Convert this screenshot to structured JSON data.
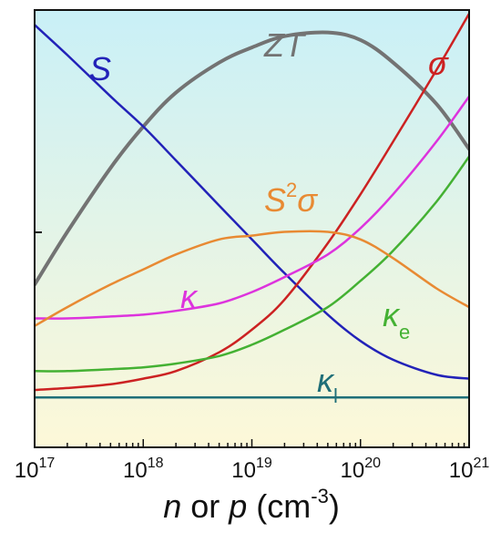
{
  "chart_data": {
    "type": "line",
    "title": "",
    "xscale": "log",
    "xlim": [
      1e+17,
      1e+21
    ],
    "ylim": [
      0,
      1
    ],
    "y_ticks_labeled": false,
    "grid": false,
    "legend": "none",
    "background_gradient": {
      "top": "#c9f0f7",
      "bottom": "#fdf8d8"
    },
    "xlabel": {
      "main1": "n",
      "mid": " or ",
      "main2": "p",
      "unit_open": " (cm",
      "exp": "-3",
      "unit_close": ")"
    },
    "x_ticks": [
      {
        "value": 1e+17,
        "base": "10",
        "exp": "17"
      },
      {
        "value": 1e+18,
        "base": "10",
        "exp": "18"
      },
      {
        "value": 1e+19,
        "base": "10",
        "exp": "19"
      },
      {
        "value": 1e+20,
        "base": "10",
        "exp": "20"
      },
      {
        "value": 1e+21,
        "base": "10",
        "exp": "21"
      }
    ],
    "series": [
      {
        "id": "zt",
        "name": "ZT",
        "color": "#737373",
        "x": [
          1e+17,
          2e+17,
          5e+17,
          1e+18,
          2e+18,
          5e+18,
          1e+19,
          2e+19,
          5e+19,
          1e+20,
          2e+20,
          5e+20,
          1e+21
        ],
        "y": [
          0.36,
          0.5,
          0.67,
          0.78,
          0.87,
          0.95,
          0.99,
          1.02,
          1.03,
          1.01,
          0.95,
          0.84,
          0.72
        ]
      },
      {
        "id": "s",
        "name": "S",
        "color": "#2222b8",
        "x": [
          1e+17,
          2e+17,
          5e+17,
          1e+18,
          2e+18,
          5e+18,
          1e+19,
          2e+19,
          5e+19,
          1e+20,
          2e+20,
          5e+20,
          1e+21
        ],
        "y": [
          1.05,
          0.97,
          0.86,
          0.78,
          0.69,
          0.57,
          0.48,
          0.39,
          0.28,
          0.21,
          0.16,
          0.12,
          0.11
        ]
      },
      {
        "id": "sigma",
        "name": "σ",
        "color": "#cc2222",
        "x": [
          1e+17,
          2e+17,
          5e+17,
          1e+18,
          2e+18,
          5e+18,
          1e+19,
          2e+19,
          5e+19,
          1e+20,
          2e+20,
          5e+20,
          1e+21
        ],
        "y": [
          0.08,
          0.085,
          0.095,
          0.11,
          0.13,
          0.18,
          0.24,
          0.32,
          0.47,
          0.6,
          0.74,
          0.93,
          1.08
        ]
      },
      {
        "id": "kappa",
        "name": "κ",
        "color": "#dd33dd",
        "x": [
          1e+17,
          2e+17,
          5e+17,
          1e+18,
          2e+18,
          5e+18,
          1e+19,
          2e+19,
          5e+19,
          1e+20,
          2e+20,
          5e+20,
          1e+21
        ],
        "y": [
          0.27,
          0.27,
          0.275,
          0.28,
          0.29,
          0.31,
          0.34,
          0.38,
          0.44,
          0.51,
          0.6,
          0.74,
          0.86
        ]
      },
      {
        "id": "ke",
        "name": "κ",
        "subscript": "e",
        "color": "#44b133",
        "x": [
          1e+17,
          2e+17,
          5e+17,
          1e+18,
          2e+18,
          5e+18,
          1e+19,
          2e+19,
          5e+19,
          1e+20,
          2e+20,
          5e+20,
          1e+21
        ],
        "y": [
          0.13,
          0.13,
          0.135,
          0.14,
          0.15,
          0.17,
          0.2,
          0.24,
          0.3,
          0.37,
          0.45,
          0.58,
          0.7
        ]
      },
      {
        "id": "s2s",
        "name": "S",
        "superscript": "2",
        "name_after": "σ",
        "color": "#e88a33",
        "x": [
          1e+17,
          2e+17,
          5e+17,
          1e+18,
          2e+18,
          5e+18,
          1e+19,
          2e+19,
          5e+19,
          1e+20,
          2e+20,
          5e+20,
          1e+21
        ],
        "y": [
          0.25,
          0.3,
          0.36,
          0.4,
          0.44,
          0.48,
          0.49,
          0.5,
          0.5,
          0.48,
          0.43,
          0.35,
          0.3
        ]
      },
      {
        "id": "kl",
        "name": "κ",
        "subscript": "l",
        "color": "#1f6f78",
        "x": [
          1e+17,
          1e+21
        ],
        "y": [
          0.06,
          0.06
        ]
      }
    ]
  }
}
